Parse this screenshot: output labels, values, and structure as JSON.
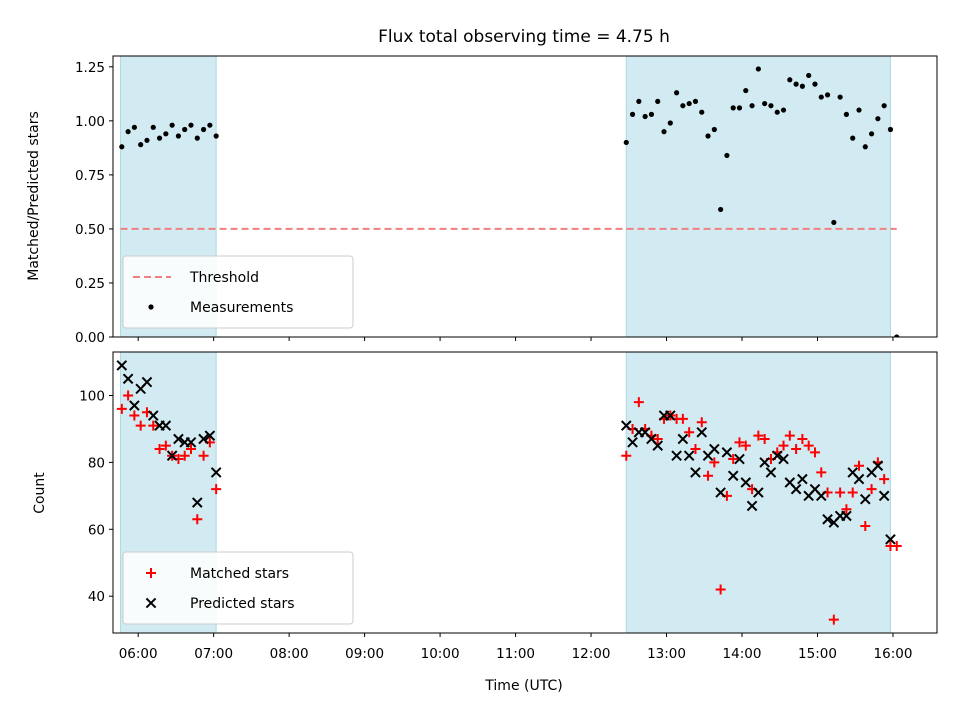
{
  "chart_data": {
    "type": "scatter",
    "title": "Flux total observing time = 4.75 h",
    "xlabel": "Time (UTC)",
    "x_ticks": [
      "06:00",
      "07:00",
      "08:00",
      "09:00",
      "10:00",
      "11:00",
      "12:00",
      "13:00",
      "14:00",
      "15:00",
      "16:00"
    ],
    "xlim": [
      "05:40",
      "16:35"
    ],
    "shaded_intervals": [
      [
        "05:46",
        "07:02"
      ],
      [
        "12:28",
        "15:58"
      ]
    ],
    "shade_color": "#add8e6",
    "panels": [
      {
        "ylabel": "Matched/Predicted stars",
        "ylim": [
          0,
          1.3
        ],
        "y_ticks": [
          "0.00",
          "0.25",
          "0.50",
          "0.75",
          "1.00",
          "1.25"
        ],
        "y_tick_values": [
          0,
          0.25,
          0.5,
          0.75,
          1.0,
          1.25
        ],
        "legend_position": "lower-left",
        "threshold": {
          "name": "Threshold",
          "value": 0.5,
          "color": "#f08080",
          "style": "dashed"
        },
        "series": [
          {
            "name": "Measurements",
            "marker": "dot",
            "color": "#000000",
            "points": [
              [
                "05:47",
                0.88
              ],
              [
                "05:52",
                0.95
              ],
              [
                "05:57",
                0.97
              ],
              [
                "06:02",
                0.89
              ],
              [
                "06:07",
                0.91
              ],
              [
                "06:12",
                0.97
              ],
              [
                "06:17",
                0.92
              ],
              [
                "06:22",
                0.94
              ],
              [
                "06:27",
                0.98
              ],
              [
                "06:32",
                0.93
              ],
              [
                "06:37",
                0.96
              ],
              [
                "06:42",
                0.98
              ],
              [
                "06:47",
                0.92
              ],
              [
                "06:52",
                0.96
              ],
              [
                "06:57",
                0.98
              ],
              [
                "07:02",
                0.93
              ],
              [
                "12:28",
                0.9
              ],
              [
                "12:33",
                1.03
              ],
              [
                "12:38",
                1.09
              ],
              [
                "12:43",
                1.02
              ],
              [
                "12:48",
                1.03
              ],
              [
                "12:53",
                1.09
              ],
              [
                "12:58",
                0.95
              ],
              [
                "13:03",
                0.99
              ],
              [
                "13:08",
                1.13
              ],
              [
                "13:13",
                1.07
              ],
              [
                "13:18",
                1.08
              ],
              [
                "13:23",
                1.09
              ],
              [
                "13:28",
                1.04
              ],
              [
                "13:33",
                0.93
              ],
              [
                "13:38",
                0.96
              ],
              [
                "13:43",
                0.59
              ],
              [
                "13:48",
                0.84
              ],
              [
                "13:53",
                1.06
              ],
              [
                "13:58",
                1.06
              ],
              [
                "14:03",
                1.14
              ],
              [
                "14:08",
                1.07
              ],
              [
                "14:13",
                1.24
              ],
              [
                "14:18",
                1.08
              ],
              [
                "14:23",
                1.07
              ],
              [
                "14:28",
                1.04
              ],
              [
                "14:33",
                1.05
              ],
              [
                "14:38",
                1.19
              ],
              [
                "14:43",
                1.17
              ],
              [
                "14:48",
                1.16
              ],
              [
                "14:53",
                1.21
              ],
              [
                "14:58",
                1.17
              ],
              [
                "15:03",
                1.11
              ],
              [
                "15:08",
                1.12
              ],
              [
                "15:13",
                0.53
              ],
              [
                "15:18",
                1.11
              ],
              [
                "15:23",
                1.03
              ],
              [
                "15:28",
                0.92
              ],
              [
                "15:33",
                1.05
              ],
              [
                "15:38",
                0.88
              ],
              [
                "15:43",
                0.94
              ],
              [
                "15:48",
                1.01
              ],
              [
                "15:53",
                1.07
              ],
              [
                "15:58",
                0.96
              ],
              [
                "16:03",
                0.0
              ]
            ]
          }
        ]
      },
      {
        "ylabel": "Count",
        "ylim": [
          29,
          113
        ],
        "y_ticks": [
          "40",
          "60",
          "80",
          "100"
        ],
        "y_tick_values": [
          40,
          60,
          80,
          100
        ],
        "legend_position": "lower-left",
        "series": [
          {
            "name": "Matched stars",
            "marker": "plus",
            "color": "#ff0000",
            "points": [
              [
                "05:47",
                96
              ],
              [
                "05:52",
                100
              ],
              [
                "05:57",
                94
              ],
              [
                "06:02",
                91
              ],
              [
                "06:07",
                95
              ],
              [
                "06:12",
                91
              ],
              [
                "06:17",
                84
              ],
              [
                "06:22",
                85
              ],
              [
                "06:27",
                82
              ],
              [
                "06:32",
                81
              ],
              [
                "06:37",
                82
              ],
              [
                "06:42",
                84
              ],
              [
                "06:47",
                63
              ],
              [
                "06:52",
                82
              ],
              [
                "06:57",
                86
              ],
              [
                "07:02",
                72
              ],
              [
                "12:28",
                82
              ],
              [
                "12:33",
                90
              ],
              [
                "12:38",
                98
              ],
              [
                "12:43",
                90
              ],
              [
                "12:48",
                88
              ],
              [
                "12:53",
                87
              ],
              [
                "12:58",
                93
              ],
              [
                "13:03",
                94
              ],
              [
                "13:08",
                93
              ],
              [
                "13:13",
                93
              ],
              [
                "13:18",
                89
              ],
              [
                "13:23",
                84
              ],
              [
                "13:28",
                92
              ],
              [
                "13:33",
                76
              ],
              [
                "13:38",
                80
              ],
              [
                "13:43",
                42
              ],
              [
                "13:48",
                70
              ],
              [
                "13:53",
                81
              ],
              [
                "13:58",
                86
              ],
              [
                "14:03",
                85
              ],
              [
                "14:08",
                72
              ],
              [
                "14:13",
                88
              ],
              [
                "14:18",
                87
              ],
              [
                "14:23",
                81
              ],
              [
                "14:28",
                83
              ],
              [
                "14:33",
                85
              ],
              [
                "14:38",
                88
              ],
              [
                "14:43",
                84
              ],
              [
                "14:48",
                87
              ],
              [
                "14:53",
                85
              ],
              [
                "14:58",
                83
              ],
              [
                "15:03",
                77
              ],
              [
                "15:08",
                71
              ],
              [
                "15:13",
                33
              ],
              [
                "15:18",
                71
              ],
              [
                "15:23",
                66
              ],
              [
                "15:28",
                71
              ],
              [
                "15:33",
                79
              ],
              [
                "15:38",
                61
              ],
              [
                "15:43",
                72
              ],
              [
                "15:48",
                80
              ],
              [
                "15:53",
                75
              ],
              [
                "15:58",
                55
              ],
              [
                "16:03",
                55
              ]
            ]
          },
          {
            "name": "Predicted stars",
            "marker": "x",
            "color": "#000000",
            "points": [
              [
                "05:47",
                109
              ],
              [
                "05:52",
                105
              ],
              [
                "05:57",
                97
              ],
              [
                "06:02",
                102
              ],
              [
                "06:07",
                104
              ],
              [
                "06:12",
                94
              ],
              [
                "06:17",
                91
              ],
              [
                "06:22",
                91
              ],
              [
                "06:27",
                82
              ],
              [
                "06:32",
                87
              ],
              [
                "06:37",
                86
              ],
              [
                "06:42",
                86
              ],
              [
                "06:47",
                68
              ],
              [
                "06:52",
                87
              ],
              [
                "06:57",
                88
              ],
              [
                "07:02",
                77
              ],
              [
                "12:28",
                91
              ],
              [
                "12:33",
                86
              ],
              [
                "12:38",
                89
              ],
              [
                "12:43",
                89
              ],
              [
                "12:48",
                87
              ],
              [
                "12:53",
                85
              ],
              [
                "12:58",
                94
              ],
              [
                "13:03",
                94
              ],
              [
                "13:08",
                82
              ],
              [
                "13:13",
                87
              ],
              [
                "13:18",
                82
              ],
              [
                "13:23",
                77
              ],
              [
                "13:28",
                89
              ],
              [
                "13:33",
                82
              ],
              [
                "13:38",
                84
              ],
              [
                "13:43",
                71
              ],
              [
                "13:48",
                83
              ],
              [
                "13:53",
                76
              ],
              [
                "13:58",
                81
              ],
              [
                "14:03",
                74
              ],
              [
                "14:08",
                67
              ],
              [
                "14:13",
                71
              ],
              [
                "14:18",
                80
              ],
              [
                "14:23",
                77
              ],
              [
                "14:28",
                82
              ],
              [
                "14:33",
                81
              ],
              [
                "14:38",
                74
              ],
              [
                "14:43",
                72
              ],
              [
                "14:48",
                75
              ],
              [
                "14:53",
                70
              ],
              [
                "14:58",
                72
              ],
              [
                "15:03",
                70
              ],
              [
                "15:08",
                63
              ],
              [
                "15:13",
                62
              ],
              [
                "15:18",
                64
              ],
              [
                "15:23",
                64
              ],
              [
                "15:28",
                77
              ],
              [
                "15:33",
                75
              ],
              [
                "15:38",
                69
              ],
              [
                "15:43",
                77
              ],
              [
                "15:48",
                79
              ],
              [
                "15:53",
                70
              ],
              [
                "15:58",
                57
              ]
            ]
          }
        ]
      }
    ]
  }
}
